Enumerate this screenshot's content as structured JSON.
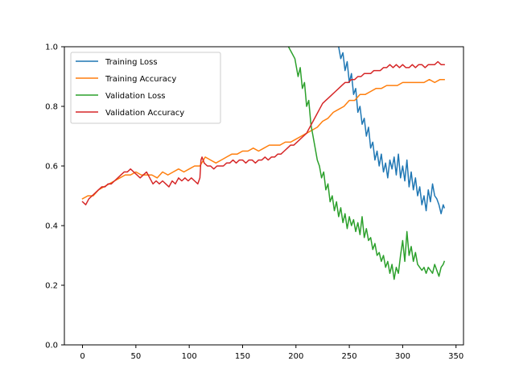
{
  "chart_data": {
    "type": "line",
    "title": "",
    "xlabel": "",
    "ylabel": "",
    "xlim": [
      -17,
      357
    ],
    "ylim": [
      0.0,
      1.0
    ],
    "xticks": [
      0,
      50,
      100,
      150,
      200,
      250,
      300,
      350
    ],
    "yticks": [
      0.0,
      0.2,
      0.4,
      0.6,
      0.8,
      1.0
    ],
    "xtick_labels": [
      "0",
      "50",
      "100",
      "150",
      "200",
      "250",
      "300",
      "350"
    ],
    "ytick_labels": [
      "0.0",
      "0.2",
      "0.4",
      "0.6",
      "0.8",
      "1.0"
    ],
    "grid": false,
    "legend_position": "upper-left",
    "series": [
      {
        "name": "Training Loss",
        "color": "#1f77b4",
        "points": [
          [
            240,
            1.0
          ],
          [
            242,
            0.96
          ],
          [
            244,
            0.98
          ],
          [
            246,
            0.92
          ],
          [
            248,
            0.95
          ],
          [
            250,
            0.88
          ],
          [
            252,
            0.91
          ],
          [
            254,
            0.84
          ],
          [
            256,
            0.86
          ],
          [
            258,
            0.78
          ],
          [
            260,
            0.8
          ],
          [
            262,
            0.74
          ],
          [
            264,
            0.76
          ],
          [
            266,
            0.7
          ],
          [
            268,
            0.73
          ],
          [
            270,
            0.66
          ],
          [
            272,
            0.68
          ],
          [
            274,
            0.62
          ],
          [
            276,
            0.65
          ],
          [
            278,
            0.6
          ],
          [
            280,
            0.64
          ],
          [
            282,
            0.58
          ],
          [
            284,
            0.61
          ],
          [
            286,
            0.56
          ],
          [
            288,
            0.62
          ],
          [
            290,
            0.59
          ],
          [
            292,
            0.63
          ],
          [
            294,
            0.57
          ],
          [
            296,
            0.64
          ],
          [
            298,
            0.56
          ],
          [
            300,
            0.6
          ],
          [
            302,
            0.55
          ],
          [
            304,
            0.62
          ],
          [
            306,
            0.53
          ],
          [
            308,
            0.58
          ],
          [
            310,
            0.52
          ],
          [
            312,
            0.56
          ],
          [
            314,
            0.5
          ],
          [
            316,
            0.53
          ],
          [
            318,
            0.47
          ],
          [
            320,
            0.5
          ],
          [
            322,
            0.45
          ],
          [
            324,
            0.52
          ],
          [
            326,
            0.48
          ],
          [
            328,
            0.54
          ],
          [
            330,
            0.5
          ],
          [
            332,
            0.49
          ],
          [
            334,
            0.47
          ],
          [
            336,
            0.44
          ],
          [
            338,
            0.47
          ],
          [
            339,
            0.46
          ]
        ]
      },
      {
        "name": "Training Accuracy",
        "color": "#ff7f0e",
        "points": [
          [
            0,
            0.49
          ],
          [
            5,
            0.5
          ],
          [
            10,
            0.5
          ],
          [
            15,
            0.52
          ],
          [
            20,
            0.53
          ],
          [
            25,
            0.54
          ],
          [
            30,
            0.55
          ],
          [
            35,
            0.56
          ],
          [
            40,
            0.57
          ],
          [
            45,
            0.57
          ],
          [
            50,
            0.58
          ],
          [
            55,
            0.57
          ],
          [
            60,
            0.57
          ],
          [
            65,
            0.57
          ],
          [
            70,
            0.56
          ],
          [
            75,
            0.58
          ],
          [
            80,
            0.57
          ],
          [
            85,
            0.58
          ],
          [
            90,
            0.59
          ],
          [
            95,
            0.58
          ],
          [
            100,
            0.59
          ],
          [
            105,
            0.6
          ],
          [
            110,
            0.6
          ],
          [
            115,
            0.63
          ],
          [
            120,
            0.62
          ],
          [
            125,
            0.61
          ],
          [
            130,
            0.62
          ],
          [
            135,
            0.63
          ],
          [
            140,
            0.64
          ],
          [
            145,
            0.64
          ],
          [
            150,
            0.65
          ],
          [
            155,
            0.65
          ],
          [
            160,
            0.66
          ],
          [
            165,
            0.65
          ],
          [
            170,
            0.66
          ],
          [
            175,
            0.67
          ],
          [
            180,
            0.67
          ],
          [
            185,
            0.67
          ],
          [
            190,
            0.68
          ],
          [
            195,
            0.68
          ],
          [
            200,
            0.69
          ],
          [
            205,
            0.7
          ],
          [
            210,
            0.71
          ],
          [
            215,
            0.72
          ],
          [
            220,
            0.73
          ],
          [
            225,
            0.75
          ],
          [
            230,
            0.76
          ],
          [
            235,
            0.78
          ],
          [
            240,
            0.79
          ],
          [
            245,
            0.8
          ],
          [
            250,
            0.82
          ],
          [
            255,
            0.82
          ],
          [
            260,
            0.84
          ],
          [
            265,
            0.84
          ],
          [
            270,
            0.85
          ],
          [
            275,
            0.86
          ],
          [
            280,
            0.86
          ],
          [
            285,
            0.87
          ],
          [
            290,
            0.87
          ],
          [
            295,
            0.87
          ],
          [
            300,
            0.88
          ],
          [
            305,
            0.88
          ],
          [
            310,
            0.88
          ],
          [
            315,
            0.88
          ],
          [
            320,
            0.88
          ],
          [
            325,
            0.89
          ],
          [
            330,
            0.88
          ],
          [
            335,
            0.89
          ],
          [
            339,
            0.89
          ]
        ]
      },
      {
        "name": "Validation Loss",
        "color": "#2ca02c",
        "points": [
          [
            193,
            1.0
          ],
          [
            196,
            0.98
          ],
          [
            199,
            0.96
          ],
          [
            202,
            0.9
          ],
          [
            204,
            0.93
          ],
          [
            206,
            0.86
          ],
          [
            208,
            0.88
          ],
          [
            210,
            0.8
          ],
          [
            212,
            0.82
          ],
          [
            214,
            0.74
          ],
          [
            216,
            0.7
          ],
          [
            218,
            0.66
          ],
          [
            220,
            0.62
          ],
          [
            222,
            0.6
          ],
          [
            224,
            0.56
          ],
          [
            226,
            0.58
          ],
          [
            228,
            0.52
          ],
          [
            230,
            0.54
          ],
          [
            232,
            0.48
          ],
          [
            234,
            0.5
          ],
          [
            236,
            0.45
          ],
          [
            238,
            0.48
          ],
          [
            240,
            0.43
          ],
          [
            242,
            0.46
          ],
          [
            244,
            0.41
          ],
          [
            246,
            0.44
          ],
          [
            248,
            0.39
          ],
          [
            250,
            0.43
          ],
          [
            252,
            0.4
          ],
          [
            254,
            0.42
          ],
          [
            256,
            0.38
          ],
          [
            258,
            0.41
          ],
          [
            260,
            0.37
          ],
          [
            262,
            0.43
          ],
          [
            264,
            0.36
          ],
          [
            266,
            0.39
          ],
          [
            268,
            0.35
          ],
          [
            270,
            0.36
          ],
          [
            272,
            0.32
          ],
          [
            274,
            0.34
          ],
          [
            276,
            0.3
          ],
          [
            278,
            0.31
          ],
          [
            280,
            0.28
          ],
          [
            282,
            0.3
          ],
          [
            284,
            0.26
          ],
          [
            286,
            0.28
          ],
          [
            288,
            0.24
          ],
          [
            290,
            0.27
          ],
          [
            292,
            0.22
          ],
          [
            294,
            0.26
          ],
          [
            296,
            0.24
          ],
          [
            298,
            0.3
          ],
          [
            300,
            0.35
          ],
          [
            302,
            0.28
          ],
          [
            304,
            0.38
          ],
          [
            306,
            0.3
          ],
          [
            308,
            0.33
          ],
          [
            310,
            0.28
          ],
          [
            312,
            0.31
          ],
          [
            314,
            0.27
          ],
          [
            316,
            0.26
          ],
          [
            318,
            0.25
          ],
          [
            320,
            0.26
          ],
          [
            322,
            0.24
          ],
          [
            324,
            0.26
          ],
          [
            326,
            0.25
          ],
          [
            328,
            0.24
          ],
          [
            330,
            0.27
          ],
          [
            332,
            0.25
          ],
          [
            334,
            0.23
          ],
          [
            336,
            0.26
          ],
          [
            338,
            0.27
          ],
          [
            339,
            0.28
          ]
        ]
      },
      {
        "name": "Validation Accuracy",
        "color": "#d62728",
        "points": [
          [
            0,
            0.48
          ],
          [
            3,
            0.47
          ],
          [
            6,
            0.49
          ],
          [
            9,
            0.5
          ],
          [
            12,
            0.51
          ],
          [
            15,
            0.52
          ],
          [
            18,
            0.53
          ],
          [
            21,
            0.53
          ],
          [
            24,
            0.54
          ],
          [
            27,
            0.54
          ],
          [
            30,
            0.55
          ],
          [
            33,
            0.56
          ],
          [
            36,
            0.57
          ],
          [
            39,
            0.58
          ],
          [
            42,
            0.58
          ],
          [
            45,
            0.59
          ],
          [
            48,
            0.58
          ],
          [
            51,
            0.57
          ],
          [
            54,
            0.56
          ],
          [
            57,
            0.57
          ],
          [
            60,
            0.58
          ],
          [
            63,
            0.56
          ],
          [
            66,
            0.54
          ],
          [
            69,
            0.55
          ],
          [
            72,
            0.54
          ],
          [
            75,
            0.55
          ],
          [
            78,
            0.54
          ],
          [
            81,
            0.53
          ],
          [
            84,
            0.55
          ],
          [
            87,
            0.54
          ],
          [
            90,
            0.56
          ],
          [
            93,
            0.55
          ],
          [
            96,
            0.56
          ],
          [
            99,
            0.55
          ],
          [
            102,
            0.56
          ],
          [
            105,
            0.55
          ],
          [
            108,
            0.54
          ],
          [
            110,
            0.56
          ],
          [
            111,
            0.62
          ],
          [
            112,
            0.63
          ],
          [
            114,
            0.61
          ],
          [
            117,
            0.6
          ],
          [
            120,
            0.6
          ],
          [
            123,
            0.59
          ],
          [
            126,
            0.6
          ],
          [
            129,
            0.6
          ],
          [
            132,
            0.6
          ],
          [
            135,
            0.61
          ],
          [
            138,
            0.61
          ],
          [
            141,
            0.62
          ],
          [
            144,
            0.61
          ],
          [
            147,
            0.62
          ],
          [
            150,
            0.62
          ],
          [
            153,
            0.61
          ],
          [
            156,
            0.62
          ],
          [
            159,
            0.62
          ],
          [
            162,
            0.61
          ],
          [
            165,
            0.62
          ],
          [
            168,
            0.62
          ],
          [
            171,
            0.63
          ],
          [
            174,
            0.62
          ],
          [
            177,
            0.63
          ],
          [
            180,
            0.63
          ],
          [
            183,
            0.64
          ],
          [
            186,
            0.64
          ],
          [
            189,
            0.65
          ],
          [
            192,
            0.66
          ],
          [
            195,
            0.67
          ],
          [
            198,
            0.67
          ],
          [
            201,
            0.68
          ],
          [
            204,
            0.69
          ],
          [
            207,
            0.7
          ],
          [
            210,
            0.71
          ],
          [
            213,
            0.73
          ],
          [
            216,
            0.75
          ],
          [
            219,
            0.77
          ],
          [
            222,
            0.79
          ],
          [
            225,
            0.81
          ],
          [
            228,
            0.82
          ],
          [
            231,
            0.83
          ],
          [
            234,
            0.84
          ],
          [
            237,
            0.85
          ],
          [
            240,
            0.86
          ],
          [
            243,
            0.87
          ],
          [
            246,
            0.88
          ],
          [
            249,
            0.88
          ],
          [
            252,
            0.89
          ],
          [
            255,
            0.89
          ],
          [
            258,
            0.9
          ],
          [
            261,
            0.9
          ],
          [
            264,
            0.91
          ],
          [
            267,
            0.91
          ],
          [
            270,
            0.91
          ],
          [
            273,
            0.92
          ],
          [
            276,
            0.92
          ],
          [
            279,
            0.92
          ],
          [
            282,
            0.93
          ],
          [
            285,
            0.93
          ],
          [
            288,
            0.94
          ],
          [
            291,
            0.93
          ],
          [
            294,
            0.94
          ],
          [
            297,
            0.93
          ],
          [
            300,
            0.94
          ],
          [
            303,
            0.93
          ],
          [
            306,
            0.93
          ],
          [
            309,
            0.94
          ],
          [
            312,
            0.93
          ],
          [
            315,
            0.94
          ],
          [
            318,
            0.94
          ],
          [
            321,
            0.93
          ],
          [
            324,
            0.94
          ],
          [
            327,
            0.94
          ],
          [
            330,
            0.94
          ],
          [
            333,
            0.95
          ],
          [
            336,
            0.94
          ],
          [
            339,
            0.94
          ]
        ]
      }
    ]
  }
}
